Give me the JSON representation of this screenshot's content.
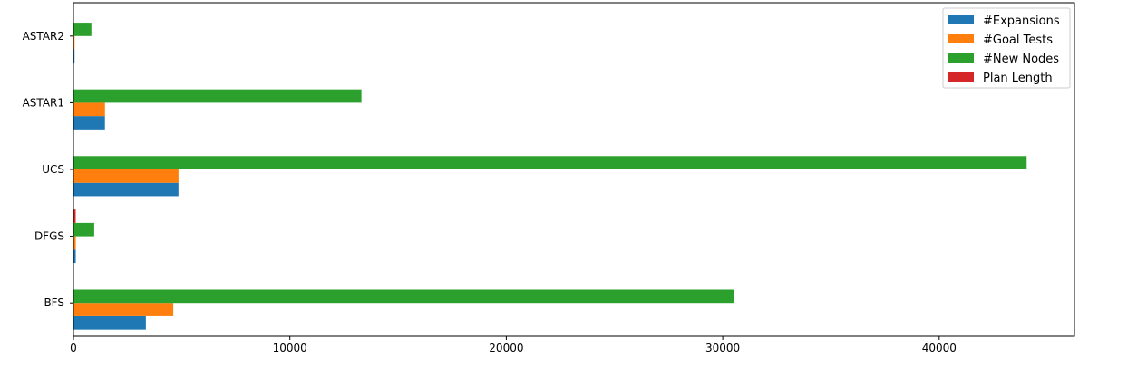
{
  "chart_data": {
    "type": "bar",
    "orientation": "horizontal",
    "categories": [
      "BFS",
      "DFGS",
      "UCS",
      "ASTAR1",
      "ASTAR2"
    ],
    "series": [
      {
        "name": "#Expansions",
        "color": "#1f77b4",
        "values": [
          3346,
          107,
          4853,
          1455,
          50
        ]
      },
      {
        "name": "#Goal Tests",
        "color": "#ff7f0e",
        "values": [
          4612,
          108,
          4855,
          1457,
          52
        ]
      },
      {
        "name": "#New Nodes",
        "color": "#2ca02c",
        "values": [
          30534,
          959,
          44041,
          13306,
          830
        ]
      },
      {
        "name": "Plan Length",
        "color": "#d62728",
        "values": [
          12,
          105,
          12,
          12,
          12
        ]
      }
    ],
    "xlim": [
      0,
      46250
    ],
    "xticks": [
      0,
      10000,
      20000,
      30000,
      40000
    ],
    "grid": false,
    "legend_position": "top-right",
    "title": "",
    "xlabel": "",
    "ylabel": ""
  }
}
